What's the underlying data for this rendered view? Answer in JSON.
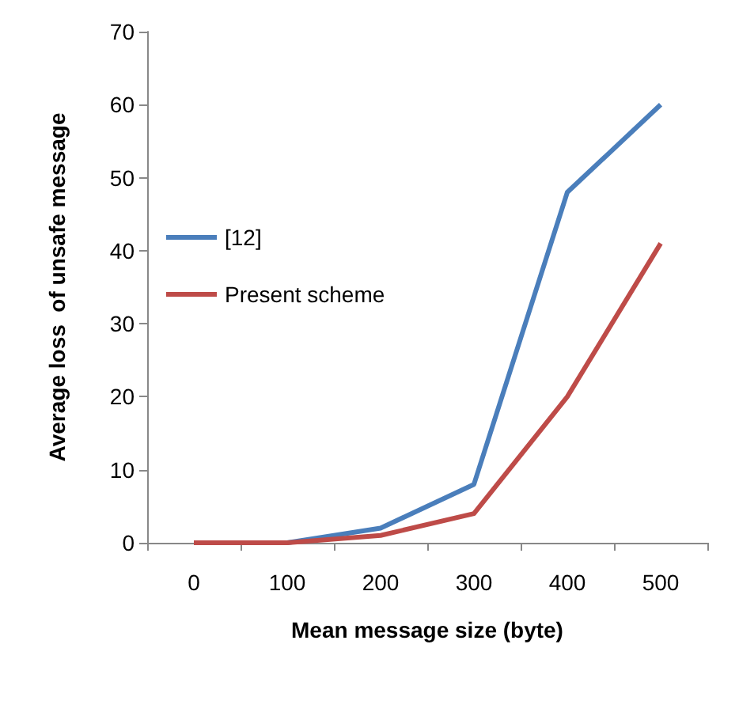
{
  "chart_data": {
    "type": "line",
    "xlabel": "Mean message size (byte)",
    "ylabel": "Average loss  of unsafe message",
    "categories": [
      "0",
      "100",
      "200",
      "300",
      "400",
      "500"
    ],
    "series": [
      {
        "name": "[12]",
        "color": "#4a7ebb",
        "values": [
          0,
          0,
          2,
          8,
          48,
          60
        ]
      },
      {
        "name": "Present scheme",
        "color": "#be4b48",
        "values": [
          0,
          0,
          1,
          4,
          20,
          41
        ]
      }
    ],
    "ylim": [
      0,
      70
    ],
    "yticks": [
      0,
      10,
      20,
      30,
      40,
      50,
      60,
      70
    ],
    "grid": false,
    "legend": "left",
    "marker": "none",
    "line_style": "solid"
  }
}
